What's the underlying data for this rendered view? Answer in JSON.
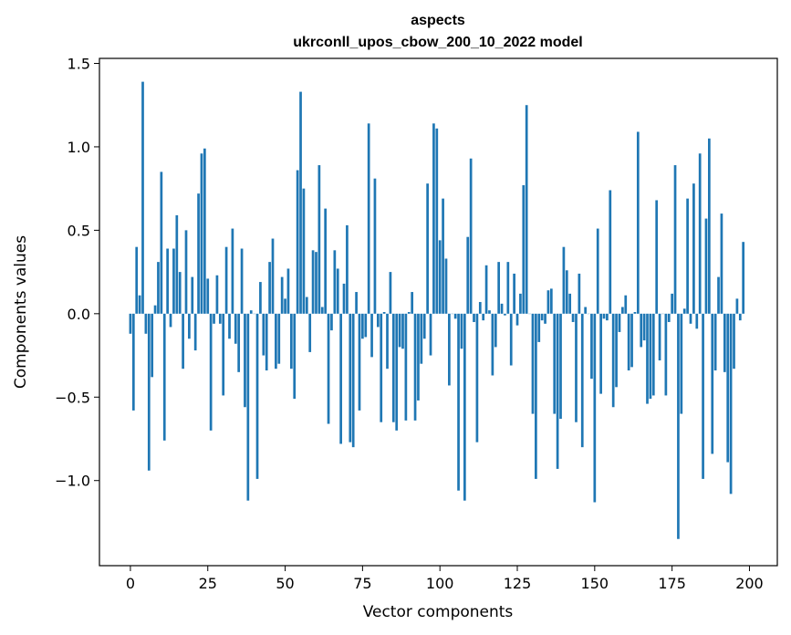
{
  "chart_data": {
    "type": "bar",
    "title": "aspects",
    "subtitle": "ukrconll_upos_cbow_200_10_2022 model",
    "xlabel": "Vector components",
    "ylabel": "Components values",
    "xlim": [
      -10,
      209
    ],
    "ylim": [
      -1.51,
      1.53
    ],
    "xticks": [
      0,
      25,
      50,
      75,
      100,
      125,
      150,
      175,
      200
    ],
    "xtick_labels": [
      "0",
      "25",
      "50",
      "75",
      "100",
      "125",
      "150",
      "175",
      "200"
    ],
    "yticks": [
      -1.0,
      -0.5,
      0.0,
      0.5,
      1.0,
      1.5
    ],
    "ytick_labels": [
      "−1.0",
      "−0.5",
      "0.0",
      "0.5",
      "1.0",
      "1.5"
    ],
    "grid": false,
    "bar_color": "#1f77b4",
    "values": [
      -0.12,
      -0.58,
      0.4,
      0.11,
      1.39,
      -0.12,
      -0.94,
      -0.38,
      0.05,
      0.31,
      0.85,
      -0.76,
      0.39,
      -0.08,
      0.39,
      0.59,
      0.25,
      -0.33,
      0.5,
      -0.15,
      0.22,
      -0.22,
      0.72,
      0.96,
      0.99,
      0.21,
      -0.7,
      -0.06,
      0.23,
      -0.06,
      -0.49,
      0.4,
      -0.15,
      0.51,
      -0.18,
      -0.35,
      0.39,
      -0.56,
      -1.12,
      0.02,
      0.0,
      -0.99,
      0.19,
      -0.25,
      -0.34,
      0.31,
      0.45,
      -0.33,
      -0.3,
      0.22,
      0.09,
      0.27,
      -0.33,
      -0.51,
      0.86,
      1.33,
      0.75,
      0.1,
      -0.23,
      0.38,
      0.37,
      0.89,
      0.04,
      0.63,
      -0.66,
      -0.1,
      0.38,
      0.27,
      -0.78,
      0.18,
      0.53,
      -0.77,
      -0.8,
      0.13,
      -0.58,
      -0.15,
      -0.14,
      1.14,
      -0.26,
      0.81,
      -0.08,
      -0.65,
      0.01,
      -0.33,
      0.25,
      -0.65,
      -0.7,
      -0.2,
      -0.21,
      -0.64,
      0.01,
      0.13,
      -0.64,
      -0.52,
      -0.3,
      -0.15,
      0.78,
      -0.25,
      1.14,
      1.11,
      0.44,
      0.69,
      0.33,
      -0.43,
      0.0,
      -0.03,
      -1.06,
      -0.21,
      -1.12,
      0.46,
      0.93,
      -0.05,
      -0.77,
      0.07,
      -0.04,
      0.29,
      0.02,
      -0.37,
      -0.2,
      0.31,
      0.06,
      -0.01,
      0.31,
      -0.31,
      0.24,
      -0.07,
      0.12,
      0.77,
      1.25,
      0.0,
      -0.6,
      -0.99,
      -0.17,
      -0.04,
      -0.06,
      0.14,
      0.15,
      -0.6,
      -0.93,
      -0.63,
      0.4,
      0.26,
      0.12,
      -0.05,
      -0.65,
      0.24,
      -0.8,
      0.04,
      0.0,
      -0.39,
      -1.13,
      0.51,
      -0.48,
      -0.03,
      -0.04,
      0.74,
      -0.56,
      -0.44,
      -0.11,
      0.04,
      0.11,
      -0.34,
      -0.32,
      0.01,
      1.09,
      -0.2,
      -0.16,
      -0.54,
      -0.51,
      -0.49,
      0.68,
      -0.28,
      0.0,
      -0.49,
      -0.05,
      0.12,
      0.89,
      -1.35,
      -0.6,
      0.03,
      0.69,
      -0.06,
      0.78,
      -0.09,
      0.96,
      -0.99,
      0.57,
      1.05,
      -0.84,
      -0.34,
      0.22,
      0.6,
      -0.35,
      -0.89,
      -1.08,
      -0.33,
      0.09,
      -0.04,
      0.43
    ]
  }
}
